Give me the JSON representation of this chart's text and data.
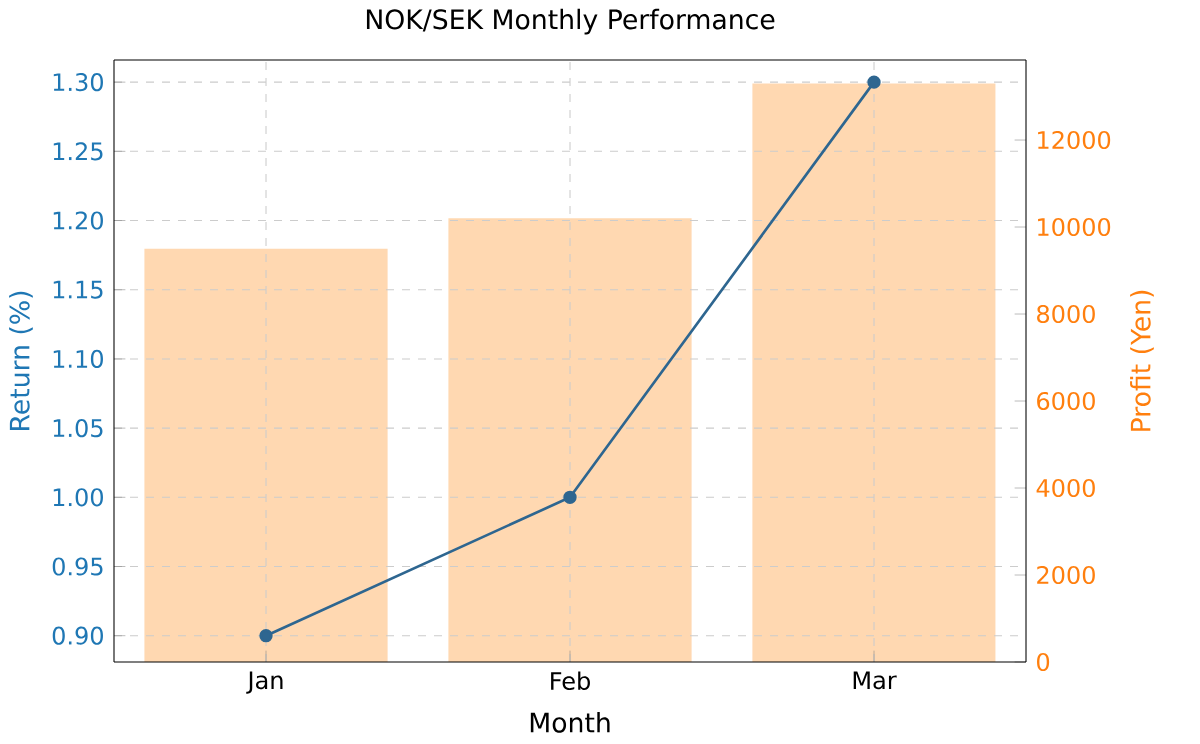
{
  "chart_data": {
    "type": "line",
    "title": "NOK/SEK Monthly Performance",
    "xlabel": "Month",
    "ylabel": "Return (%)",
    "y2label": "Profit (Yen)",
    "categories": [
      "Jan",
      "Feb",
      "Mar"
    ],
    "series": [
      {
        "type": "bar",
        "axis": "y2",
        "color": "#ffd8b1",
        "values": [
          9500,
          10200,
          13300
        ]
      },
      {
        "color": "#2e6690",
        "values": [
          0.9,
          1.0,
          1.3
        ]
      }
    ],
    "ylim": [
      0.881,
      1.316
    ],
    "yticks": [
      {
        "value": 0.9,
        "label": "0.90"
      },
      {
        "value": 0.95,
        "label": "0.95"
      },
      {
        "value": 1.0,
        "label": "1.00"
      },
      {
        "value": 1.05,
        "label": "1.05"
      },
      {
        "value": 1.1,
        "label": "1.10"
      },
      {
        "value": 1.15,
        "label": "1.15"
      },
      {
        "value": 1.2,
        "label": "1.20"
      },
      {
        "value": 1.25,
        "label": "1.25"
      },
      {
        "value": 1.3,
        "label": "1.30"
      }
    ],
    "y2lim": [
      0,
      13840
    ],
    "y2ticks": [
      0,
      2000,
      4000,
      6000,
      8000,
      10000,
      12000
    ],
    "grid": true,
    "marker": "circle",
    "line_style": "solid"
  }
}
